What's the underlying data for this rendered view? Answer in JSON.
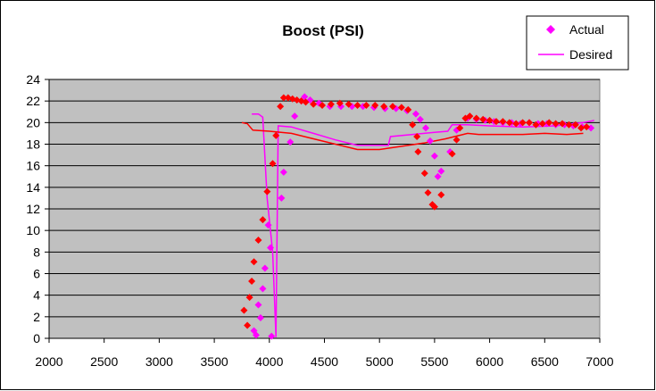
{
  "chart_data": {
    "type": "scatter",
    "title": "Boost (PSI)",
    "xlabel": "",
    "ylabel": "",
    "xlim": [
      2000,
      7000
    ],
    "ylim": [
      0,
      24
    ],
    "x_ticks": [
      2000,
      2500,
      3000,
      3500,
      4000,
      4500,
      5000,
      5500,
      6000,
      6500,
      7000
    ],
    "y_ticks": [
      0,
      2,
      4,
      6,
      8,
      10,
      12,
      14,
      16,
      18,
      20,
      22,
      24
    ],
    "grid": "horizontal",
    "plot_background": "#c0c0c0",
    "legend_position": "top-right",
    "legend": [
      {
        "label": "Actual",
        "marker": "diamond",
        "color": "#ff00ff"
      },
      {
        "label": "Desired",
        "marker": "line",
        "color": "#ff00ff"
      }
    ],
    "series": [
      {
        "name": "Actual",
        "kind": "points",
        "color": "#ff00ff",
        "points": [
          [
            3860,
            0.7
          ],
          [
            3880,
            0.3
          ],
          [
            3900,
            3.1
          ],
          [
            3920,
            1.9
          ],
          [
            3940,
            4.6
          ],
          [
            3960,
            6.5
          ],
          [
            3990,
            10.5
          ],
          [
            4010,
            8.4
          ],
          [
            4020,
            0.2
          ],
          [
            4110,
            13.0
          ],
          [
            4130,
            15.4
          ],
          [
            4190,
            18.2
          ],
          [
            4230,
            20.6
          ],
          [
            4290,
            22.0
          ],
          [
            4320,
            22.4
          ],
          [
            4370,
            22.1
          ],
          [
            4450,
            21.8
          ],
          [
            4550,
            21.5
          ],
          [
            4650,
            21.5
          ],
          [
            4750,
            21.5
          ],
          [
            4850,
            21.5
          ],
          [
            4950,
            21.4
          ],
          [
            5050,
            21.3
          ],
          [
            5150,
            21.3
          ],
          [
            5250,
            21.1
          ],
          [
            5330,
            20.8
          ],
          [
            5370,
            20.3
          ],
          [
            5420,
            19.5
          ],
          [
            5460,
            18.3
          ],
          [
            5500,
            16.9
          ],
          [
            5530,
            15.0
          ],
          [
            5560,
            15.5
          ],
          [
            5640,
            17.3
          ],
          [
            5700,
            19.3
          ],
          [
            5800,
            20.4
          ],
          [
            5880,
            20.3
          ],
          [
            5960,
            20.2
          ],
          [
            6040,
            20.1
          ],
          [
            6120,
            20.0
          ],
          [
            6200,
            20.0
          ],
          [
            6280,
            19.9
          ],
          [
            6360,
            20.0
          ],
          [
            6440,
            19.9
          ],
          [
            6520,
            19.9
          ],
          [
            6600,
            19.8
          ],
          [
            6680,
            19.8
          ],
          [
            6760,
            19.7
          ],
          [
            6840,
            19.6
          ],
          [
            6920,
            19.5
          ]
        ]
      },
      {
        "name": "",
        "kind": "points",
        "color": "#ff0000",
        "points": [
          [
            3770,
            2.6
          ],
          [
            3800,
            1.2
          ],
          [
            3820,
            3.8
          ],
          [
            3840,
            5.3
          ],
          [
            3860,
            7.1
          ],
          [
            3900,
            9.1
          ],
          [
            3940,
            11.0
          ],
          [
            3980,
            13.6
          ],
          [
            4030,
            16.2
          ],
          [
            4060,
            18.8
          ],
          [
            4100,
            21.5
          ],
          [
            4130,
            22.3
          ],
          [
            4170,
            22.3
          ],
          [
            4210,
            22.2
          ],
          [
            4250,
            22.1
          ],
          [
            4290,
            22.0
          ],
          [
            4330,
            21.9
          ],
          [
            4400,
            21.7
          ],
          [
            4480,
            21.6
          ],
          [
            4560,
            21.7
          ],
          [
            4640,
            21.8
          ],
          [
            4720,
            21.7
          ],
          [
            4800,
            21.6
          ],
          [
            4880,
            21.6
          ],
          [
            4960,
            21.6
          ],
          [
            5040,
            21.5
          ],
          [
            5120,
            21.5
          ],
          [
            5200,
            21.4
          ],
          [
            5260,
            21.2
          ],
          [
            5300,
            19.8
          ],
          [
            5340,
            18.7
          ],
          [
            5350,
            17.3
          ],
          [
            5410,
            15.3
          ],
          [
            5440,
            13.5
          ],
          [
            5480,
            12.4
          ],
          [
            5500,
            12.2
          ],
          [
            5560,
            13.3
          ],
          [
            5660,
            17.1
          ],
          [
            5700,
            18.4
          ],
          [
            5730,
            19.5
          ],
          [
            5780,
            20.4
          ],
          [
            5820,
            20.6
          ],
          [
            5880,
            20.4
          ],
          [
            5940,
            20.3
          ],
          [
            6000,
            20.2
          ],
          [
            6060,
            20.1
          ],
          [
            6120,
            20.1
          ],
          [
            6180,
            20.0
          ],
          [
            6240,
            19.9
          ],
          [
            6300,
            20.0
          ],
          [
            6360,
            20.0
          ],
          [
            6420,
            19.8
          ],
          [
            6480,
            19.9
          ],
          [
            6540,
            20.0
          ],
          [
            6600,
            19.9
          ],
          [
            6660,
            19.9
          ],
          [
            6720,
            19.8
          ],
          [
            6780,
            19.8
          ],
          [
            6830,
            19.5
          ],
          [
            6880,
            19.6
          ]
        ]
      },
      {
        "name": "Desired",
        "kind": "line",
        "color": "#ff00ff",
        "points": [
          [
            3840,
            20.8
          ],
          [
            3900,
            20.8
          ],
          [
            3940,
            20.5
          ],
          [
            3980,
            13.0
          ],
          [
            4030,
            8.0
          ],
          [
            4060,
            0.1
          ],
          [
            4080,
            19.7
          ],
          [
            4200,
            19.6
          ],
          [
            4400,
            19.0
          ],
          [
            4600,
            18.4
          ],
          [
            4800,
            17.9
          ],
          [
            4980,
            17.9
          ],
          [
            5080,
            17.9
          ],
          [
            5100,
            18.7
          ],
          [
            5300,
            18.9
          ],
          [
            5500,
            19.1
          ],
          [
            5620,
            19.2
          ],
          [
            5660,
            19.8
          ],
          [
            5800,
            19.8
          ],
          [
            6000,
            19.7
          ],
          [
            6300,
            19.6
          ],
          [
            6600,
            19.7
          ],
          [
            6850,
            20.0
          ],
          [
            6950,
            20.2
          ]
        ]
      },
      {
        "name": "",
        "kind": "line",
        "color": "#ff0000",
        "points": [
          [
            3750,
            20.0
          ],
          [
            3800,
            19.9
          ],
          [
            3850,
            19.3
          ],
          [
            4000,
            19.2
          ],
          [
            4200,
            19.0
          ],
          [
            4400,
            18.5
          ],
          [
            4600,
            18.0
          ],
          [
            4800,
            17.5
          ],
          [
            5000,
            17.5
          ],
          [
            5200,
            17.8
          ],
          [
            5400,
            18.1
          ],
          [
            5600,
            18.5
          ],
          [
            5800,
            19.0
          ],
          [
            5900,
            18.9
          ],
          [
            6000,
            18.9
          ],
          [
            6300,
            18.9
          ],
          [
            6500,
            19.0
          ],
          [
            6700,
            18.9
          ],
          [
            6850,
            19.0
          ]
        ]
      }
    ]
  }
}
